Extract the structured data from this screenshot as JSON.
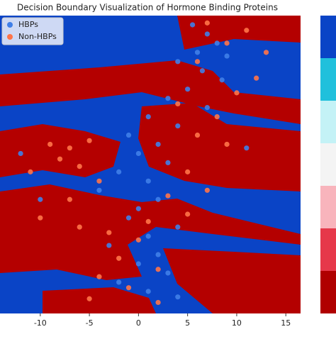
{
  "chart_data": {
    "type": "scatter",
    "title": "Decision Boundary Visualization of Hormone Binding Proteins",
    "xlim": [
      -14.1,
      16.5
    ],
    "xticks": [
      -10,
      -5,
      0,
      5,
      10,
      15
    ],
    "ylim": [
      -8.2,
      8
    ],
    "colorbar_colors": [
      "#0a44c6",
      "#20c0dc",
      "#c4f2f6",
      "#f4f4f4",
      "#f8b4bc",
      "#e6384a",
      "#b00000"
    ],
    "legend": "upper left",
    "series": [
      {
        "name": "HBPs",
        "color": "#3f7fe8",
        "x": [
          5.5,
          7,
          8,
          6,
          9,
          4,
          6.5,
          8.5,
          5,
          3,
          7,
          1,
          4,
          -1,
          2,
          0,
          3,
          -2,
          1,
          -4,
          2,
          0,
          -1,
          4,
          1,
          -3,
          2,
          0,
          3,
          -2,
          1,
          4,
          -10,
          -12,
          11
        ],
        "values": [
          7.5,
          7,
          6.5,
          6,
          5.8,
          5.5,
          5,
          4.5,
          4,
          3.5,
          3,
          2.5,
          2,
          1.5,
          1,
          0.5,
          0,
          -0.5,
          -1,
          -1.5,
          -2,
          -2.5,
          -3,
          -3.5,
          -4,
          -4.5,
          -5,
          -5.5,
          -6,
          -6.5,
          -7,
          -7.3,
          -2,
          0.5,
          0.8
        ]
      },
      {
        "name": "Non-HBPs",
        "color": "#ff7448",
        "x": [
          7,
          11,
          9,
          13,
          6,
          12,
          10,
          4,
          8,
          -9,
          -7,
          -5,
          -8,
          -6,
          -11,
          -4,
          -7,
          6,
          9,
          5,
          7,
          3,
          -10,
          -6,
          1,
          -3,
          5,
          0,
          -2,
          2,
          -4,
          -1,
          -5,
          2
        ],
        "values": [
          7.6,
          7.2,
          6.5,
          6,
          5.5,
          4.6,
          3.8,
          3.2,
          2.5,
          1,
          0.8,
          1.2,
          0.2,
          -0.2,
          -0.5,
          -1,
          -2,
          1.5,
          1,
          -0.5,
          -1.5,
          -1.8,
          -3,
          -3.5,
          -3.2,
          -3.8,
          -2.8,
          -4.2,
          -5.2,
          -5.8,
          -6.2,
          -6.8,
          -7.4,
          -7.6
        ]
      }
    ]
  }
}
